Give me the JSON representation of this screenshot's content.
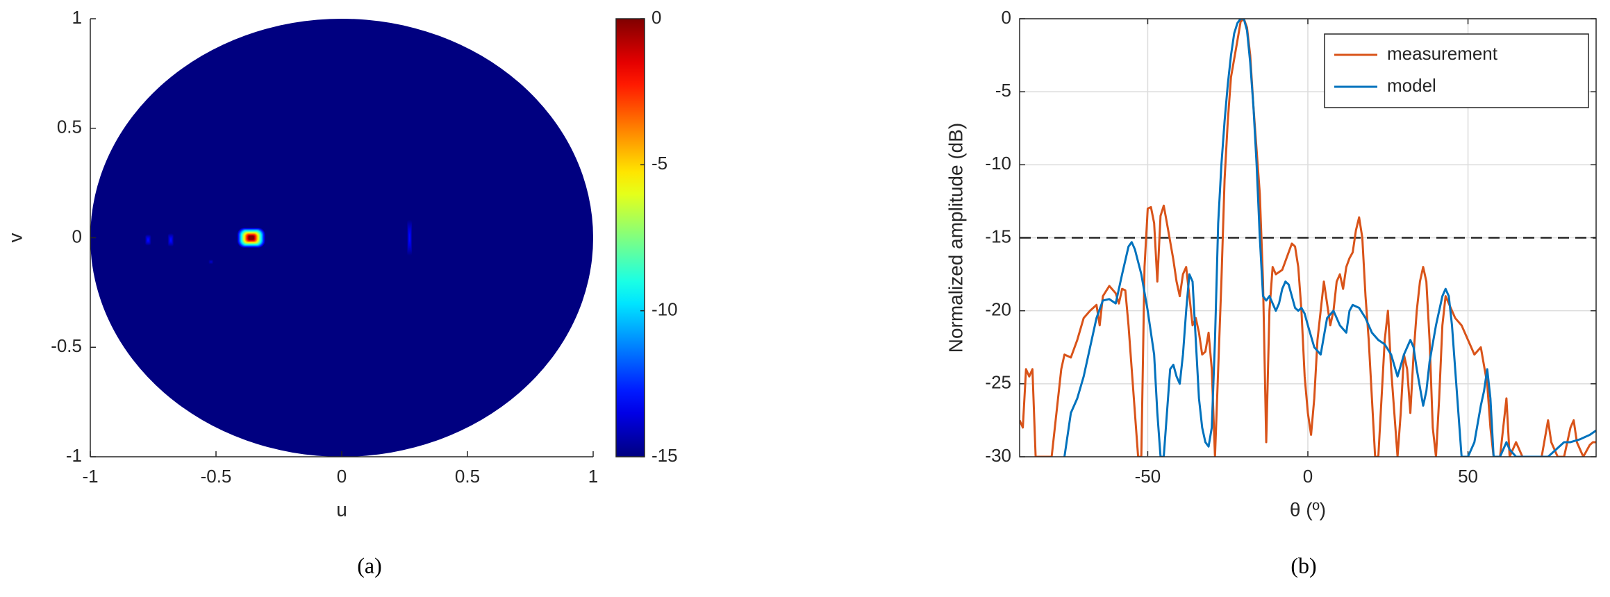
{
  "chart_data": [
    {
      "type": "heatmap",
      "xlabel": "u",
      "ylabel": "v",
      "xlim": [
        -1,
        1
      ],
      "ylim": [
        -1,
        1
      ],
      "xticks": [
        -1,
        -0.5,
        0,
        0.5,
        1
      ],
      "yticks": [
        -1,
        -0.5,
        0,
        0.5,
        1
      ],
      "clim": [
        -15,
        0
      ],
      "colorbar_ticks": [
        0,
        -5,
        -10,
        -15
      ],
      "colormap": "jet",
      "spots": [
        {
          "u": -0.36,
          "v": 0,
          "du": 0.055,
          "dv": 0.045,
          "level": 0
        },
        {
          "u": -0.77,
          "v": -0.01,
          "du": 0.012,
          "dv": 0.025,
          "level": -13
        },
        {
          "u": -0.68,
          "v": -0.01,
          "du": 0.012,
          "dv": 0.03,
          "level": -13
        },
        {
          "u": -0.52,
          "v": -0.11,
          "du": 0.01,
          "dv": 0.01,
          "level": -14
        },
        {
          "u": 0.27,
          "v": 0,
          "du": 0.01,
          "dv": 0.08,
          "level": -13
        }
      ],
      "caption": "(a)"
    },
    {
      "type": "line",
      "xlabel": "θ (º)",
      "ylabel": "Normalized amplitude (dB)",
      "xlim": [
        -90,
        90
      ],
      "ylim": [
        -30,
        0
      ],
      "xticks": [
        -50,
        0,
        50
      ],
      "yticks": [
        0,
        -5,
        -10,
        -15,
        -20,
        -25,
        -30
      ],
      "grid": true,
      "box": true,
      "legend": "upper right",
      "hline": -15,
      "series": [
        {
          "name": "measurement",
          "color": "#d95319",
          "x": [
            -90,
            -89,
            -88,
            -87,
            -86,
            -85,
            -82,
            -80,
            -77,
            -76,
            -74,
            -72,
            -70,
            -68,
            -66,
            -65,
            -64,
            -62,
            -60,
            -59,
            -58,
            -57,
            -56,
            -55,
            -53,
            -52,
            -51,
            -50,
            -49,
            -48,
            -47,
            -46,
            -45,
            -44,
            -42,
            -41,
            -40,
            -39,
            -38,
            -37,
            -36,
            -35,
            -34,
            -33,
            -32,
            -31,
            -30,
            -29,
            -28,
            -27,
            -26,
            -25,
            -24,
            -22,
            -21,
            -20,
            -19,
            -18,
            -17,
            -16,
            -15,
            -14,
            -13,
            -12,
            -11,
            -10,
            -8,
            -6,
            -5,
            -4,
            -3,
            -2,
            -1,
            0,
            1,
            2,
            3,
            4,
            5,
            6,
            7,
            8,
            9,
            10,
            11,
            12,
            13,
            14,
            15,
            16,
            17,
            18,
            19,
            20,
            21,
            22,
            23,
            24,
            25,
            26,
            27,
            28,
            29,
            30,
            31,
            32,
            33,
            34,
            35,
            36,
            37,
            38,
            39,
            40,
            41,
            42,
            43,
            44,
            46,
            48,
            50,
            52,
            54,
            56,
            57,
            58,
            60,
            62,
            63,
            65,
            67,
            69,
            71,
            73,
            75,
            76,
            78,
            80,
            82,
            83,
            84,
            86,
            88,
            89,
            90
          ],
          "values": [
            -27.5,
            -28,
            -24,
            -24.5,
            -24,
            -30,
            -30,
            -30,
            -24,
            -23,
            -23.2,
            -22,
            -20.5,
            -20,
            -19.6,
            -21,
            -19,
            -18.3,
            -18.8,
            -19.5,
            -18.5,
            -18.6,
            -21,
            -24,
            -30,
            -30,
            -17,
            -13,
            -12.9,
            -14,
            -18,
            -13.5,
            -12.8,
            -14,
            -16.5,
            -18,
            -19,
            -17.5,
            -17,
            -19,
            -21,
            -20.5,
            -21.5,
            -23,
            -22.8,
            -21.5,
            -24,
            -30,
            -24,
            -18,
            -11,
            -7,
            -4,
            -1.5,
            -0.2,
            0,
            -0.6,
            -2.5,
            -6,
            -9,
            -12,
            -18,
            -29,
            -20,
            -17,
            -17.5,
            -17.2,
            -16,
            -15.4,
            -15.6,
            -17,
            -20,
            -24.5,
            -27,
            -28.5,
            -26,
            -22,
            -20,
            -18,
            -19.5,
            -21,
            -20,
            -18,
            -17.5,
            -18.5,
            -17,
            -16.4,
            -16,
            -14.5,
            -13.6,
            -15,
            -19,
            -22,
            -26,
            -30,
            -30,
            -26,
            -22,
            -20,
            -24,
            -27,
            -30,
            -27,
            -23,
            -24,
            -27,
            -23,
            -20,
            -18,
            -17,
            -18,
            -22,
            -28,
            -30,
            -26,
            -21,
            -19,
            -19.5,
            -20.5,
            -21,
            -22,
            -23,
            -22.5,
            -25,
            -28,
            -30,
            -30,
            -26,
            -30,
            -29,
            -30,
            -30,
            -30,
            -30,
            -27.5,
            -29,
            -30,
            -30,
            -28,
            -27.5,
            -29,
            -30,
            -29.2,
            -29,
            -29
          ]
        },
        {
          "name": "model",
          "color": "#0072bd",
          "x": [
            -76,
            -74,
            -72,
            -70,
            -68,
            -66,
            -64,
            -62,
            -60,
            -58,
            -56,
            -55,
            -54,
            -52,
            -50,
            -48,
            -47,
            -46,
            -45,
            -44,
            -43,
            -42,
            -41,
            -40,
            -39,
            -38,
            -37,
            -36,
            -35,
            -34,
            -33,
            -32,
            -31,
            -30,
            -29,
            -28,
            -27,
            -26,
            -25,
            -24,
            -23,
            -22,
            -21,
            -20,
            -19,
            -18,
            -17,
            -16,
            -15,
            -14,
            -13,
            -12,
            -11,
            -10,
            -9,
            -8,
            -7,
            -6,
            -5,
            -4,
            -3,
            -2,
            -1,
            0,
            2,
            4,
            6,
            8,
            10,
            12,
            13,
            14,
            16,
            18,
            20,
            22,
            24,
            26,
            28,
            30,
            32,
            33,
            34,
            36,
            37,
            38,
            40,
            42,
            43,
            44,
            45,
            46,
            47,
            48,
            50,
            52,
            54,
            55,
            56,
            57,
            58,
            60,
            62,
            63,
            65,
            70,
            75,
            80,
            82,
            85,
            88,
            90
          ],
          "values": [
            -30,
            -27,
            -26,
            -24.5,
            -22.5,
            -20.5,
            -19.3,
            -19.2,
            -19.5,
            -17.5,
            -15.6,
            -15.3,
            -15.8,
            -17.5,
            -20,
            -23,
            -27,
            -30,
            -30,
            -27,
            -24,
            -23.7,
            -24.5,
            -25,
            -23,
            -20,
            -17.5,
            -18,
            -22,
            -26,
            -28,
            -29,
            -29.3,
            -28,
            -22,
            -14,
            -10,
            -7,
            -4.5,
            -2.5,
            -1,
            -0.3,
            0,
            0,
            -0.8,
            -3,
            -6,
            -10,
            -15,
            -19,
            -19.3,
            -19,
            -19.5,
            -20,
            -19.5,
            -18.5,
            -18,
            -18.2,
            -19,
            -19.8,
            -20,
            -19.8,
            -20.2,
            -21,
            -22.5,
            -23,
            -20.5,
            -20,
            -21,
            -21.5,
            -20,
            -19.6,
            -19.8,
            -20.5,
            -21.5,
            -22,
            -22.3,
            -23,
            -24.5,
            -23,
            -22,
            -22.5,
            -24,
            -26.5,
            -25.5,
            -23.5,
            -21,
            -19,
            -18.5,
            -19,
            -21,
            -24,
            -27,
            -30,
            -30,
            -29,
            -26.5,
            -25.5,
            -24,
            -26,
            -30,
            -30,
            -29,
            -29.5,
            -30,
            -30,
            -30,
            -29,
            -29,
            -28.8,
            -28.5,
            -28.2
          ]
        }
      ],
      "caption": "(b)"
    }
  ]
}
